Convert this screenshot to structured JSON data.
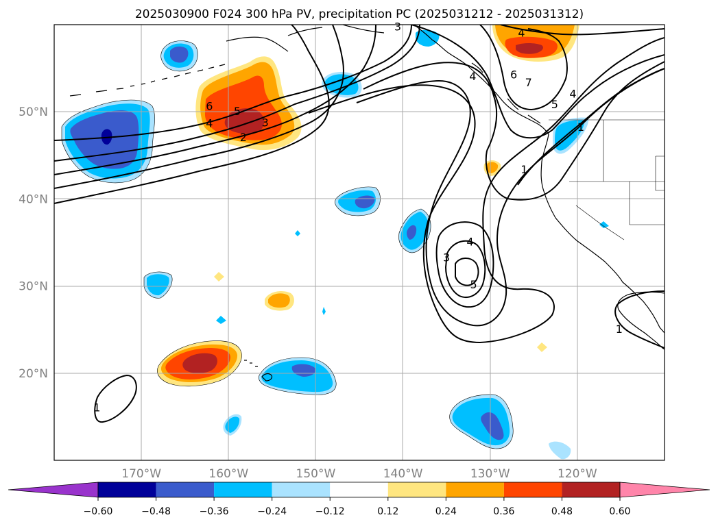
{
  "chart_data": {
    "type": "heatmap",
    "title": "2025030900 F024 300 hPa PV, precipitation PC (2025031212 - 2025031312)",
    "projection": "cylindrical lon/lat map with coastlines and country/state borders",
    "extent": {
      "lon": [
        -180,
        -110
      ],
      "lat": [
        10,
        60
      ]
    },
    "grid": true,
    "xaxis": {
      "ticks": [
        -170,
        -160,
        -150,
        -140,
        -130,
        -120
      ],
      "tick_labels": [
        "170°W",
        "160°W",
        "150°W",
        "140°W",
        "130°W",
        "120°W"
      ]
    },
    "yaxis": {
      "ticks": [
        20,
        30,
        40,
        50
      ],
      "tick_labels": [
        "20°N",
        "30°N",
        "40°N",
        "50°N"
      ]
    },
    "colorbar": {
      "orientation": "horizontal",
      "extend": "both",
      "levels": [
        -0.6,
        -0.48,
        -0.36,
        -0.24,
        -0.12,
        0.12,
        0.24,
        0.36,
        0.48,
        0.6
      ],
      "tick_labels": [
        "−0.60",
        "−0.48",
        "−0.36",
        "−0.24",
        "−0.12",
        "0.12",
        "0.24",
        "0.36",
        "0.48",
        "0.60"
      ],
      "colors": [
        "#9933cc",
        "#000099",
        "#3a5bcc",
        "#00bfff",
        "#aae3ff",
        "#ffffff",
        "#ffe680",
        "#ffa500",
        "#ff4500",
        "#b22222",
        "#ff85aa"
      ]
    },
    "contours": {
      "field": "300 hPa PV",
      "levels_labeled": [
        1,
        2,
        3,
        4,
        5,
        6,
        7
      ],
      "labels": [
        {
          "text": "6",
          "lon": -162.2,
          "lat": 50.7
        },
        {
          "text": "5",
          "lon": -159.0,
          "lat": 50.1
        },
        {
          "text": "4",
          "lon": -162.2,
          "lat": 48.7
        },
        {
          "text": "3",
          "lon": -155.8,
          "lat": 48.8
        },
        {
          "text": "2",
          "lon": -158.3,
          "lat": 47.1
        },
        {
          "text": "3",
          "lon": -140.6,
          "lat": 59.8
        },
        {
          "text": "4",
          "lon": -126.4,
          "lat": 59.1
        },
        {
          "text": "4",
          "lon": -132.0,
          "lat": 54.1
        },
        {
          "text": "6",
          "lon": -127.3,
          "lat": 54.3
        },
        {
          "text": "7",
          "lon": -125.6,
          "lat": 53.4
        },
        {
          "text": "5",
          "lon": -122.6,
          "lat": 50.9
        },
        {
          "text": "4",
          "lon": -120.5,
          "lat": 52.1
        },
        {
          "text": "1",
          "lon": -119.6,
          "lat": 48.3
        },
        {
          "text": "1",
          "lon": -126.1,
          "lat": 43.4
        },
        {
          "text": "4",
          "lon": -132.3,
          "lat": 35.1
        },
        {
          "text": "3",
          "lon": -135.0,
          "lat": 33.3
        },
        {
          "text": "5",
          "lon": -131.9,
          "lat": 30.2
        },
        {
          "text": "1",
          "lon": -175.1,
          "lat": 16.1
        },
        {
          "text": "1",
          "lon": -115.2,
          "lat": 25.1
        }
      ]
    },
    "precip_anomaly_regions": [
      {
        "lon": -163.4,
        "lat": 49.2,
        "max": 0.48,
        "sign": "positive"
      },
      {
        "lon": -162.7,
        "lat": 21.3,
        "max": 0.48,
        "sign": "positive"
      },
      {
        "lon": -125.0,
        "lat": 58.0,
        "max": 0.48,
        "sign": "positive"
      },
      {
        "lon": -173.2,
        "lat": 47.1,
        "min": -0.6,
        "sign": "negative"
      },
      {
        "lon": -164.0,
        "lat": 56.5,
        "min": -0.48,
        "sign": "negative"
      },
      {
        "lon": -146.2,
        "lat": 39.7,
        "min": -0.48,
        "sign": "negative"
      },
      {
        "lon": -150.3,
        "lat": 19.8,
        "min": -0.48,
        "sign": "negative"
      },
      {
        "lon": -130.3,
        "lat": 14.6,
        "min": -0.48,
        "sign": "negative"
      },
      {
        "lon": -138.8,
        "lat": 36.0,
        "min": -0.48,
        "sign": "negative"
      },
      {
        "lon": -147.0,
        "lat": 53.5,
        "min": -0.36,
        "sign": "negative"
      },
      {
        "lon": -120.5,
        "lat": 46.8,
        "min": -0.36,
        "sign": "negative"
      },
      {
        "lon": -168.0,
        "lat": 30.1,
        "min": -0.36,
        "sign": "negative"
      },
      {
        "lon": -159.1,
        "lat": 14.0,
        "min": -0.36,
        "sign": "negative"
      },
      {
        "lon": -155.0,
        "lat": 28.4,
        "max": 0.36,
        "sign": "positive"
      },
      {
        "lon": -129.7,
        "lat": 43.5,
        "max": 0.36,
        "sign": "positive"
      }
    ]
  }
}
